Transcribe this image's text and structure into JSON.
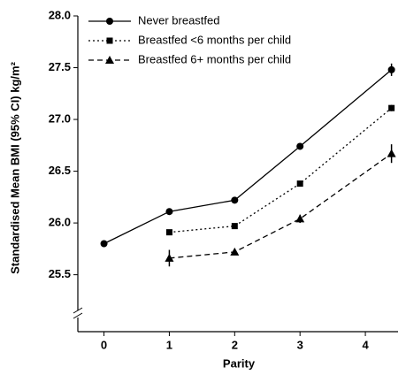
{
  "chart_data": {
    "type": "line",
    "xlabel": "Parity",
    "ylabel": "Standardised Mean BMI (95% CI) kg/m²",
    "x": [
      0,
      1,
      2,
      3,
      4.4
    ],
    "xlim": [
      -0.4,
      4.5
    ],
    "xticks": [
      0,
      1,
      2,
      3,
      4
    ],
    "ylim": [
      24.95,
      28.0
    ],
    "yticks": [
      25.5,
      {
        "value": 26.0,
        "label": "26.0"
      },
      26.5,
      {
        "value": 27.0,
        "label": "27.0"
      },
      27.5,
      {
        "value": 28.0,
        "label": "28.0"
      }
    ],
    "axis_break": true,
    "legend": "upper left",
    "series": [
      {
        "name": "Never breastfed",
        "color": "#000000",
        "dash": "solid",
        "marker": "circle",
        "values": [
          25.8,
          26.11,
          26.22,
          26.74,
          27.48
        ],
        "errors": [
          0.01,
          0.02,
          0.02,
          0.03,
          0.06
        ]
      },
      {
        "name": "Breastfed <6 months per child",
        "color": "#000000",
        "dash": "dotted",
        "marker": "square",
        "values": [
          null,
          25.91,
          25.97,
          26.38,
          27.11
        ],
        "errors": [
          null,
          0.02,
          0.02,
          0.02,
          0.03
        ]
      },
      {
        "name": "Breastfed 6+ months per child",
        "color": "#000000",
        "dash": "dashed",
        "marker": "triangle",
        "values": [
          null,
          25.66,
          25.72,
          26.04,
          26.67
        ],
        "errors": [
          null,
          0.08,
          0.02,
          0.04,
          0.09
        ]
      }
    ]
  }
}
